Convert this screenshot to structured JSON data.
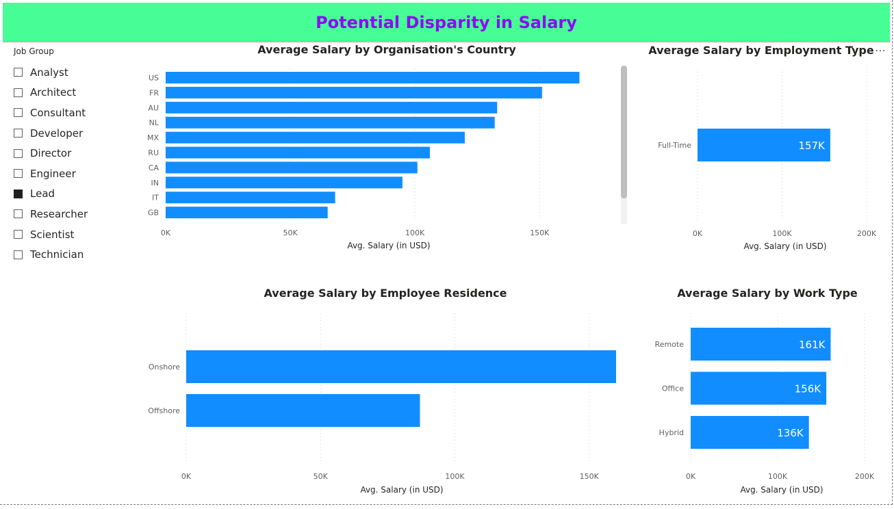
{
  "header": {
    "title": "Potential Disparity in Salary"
  },
  "slicer": {
    "title": "Job Group",
    "items": [
      {
        "label": "Analyst",
        "checked": false
      },
      {
        "label": "Architect",
        "checked": false
      },
      {
        "label": "Consultant",
        "checked": false
      },
      {
        "label": "Developer",
        "checked": false
      },
      {
        "label": "Director",
        "checked": false
      },
      {
        "label": "Engineer",
        "checked": false
      },
      {
        "label": "Lead",
        "checked": true
      },
      {
        "label": "Researcher",
        "checked": false
      },
      {
        "label": "Scientist",
        "checked": false
      },
      {
        "label": "Technician",
        "checked": false
      }
    ]
  },
  "colors": {
    "bar": "#118dff",
    "banner": "#46fe95",
    "title": "#8a0cf4"
  },
  "more_options_icon": "ellipsis-icon",
  "chart_data": [
    {
      "id": "country",
      "type": "bar",
      "orientation": "horizontal",
      "title": "Average Salary by Organisation's Country",
      "xlabel": "Avg. Salary (in USD)",
      "categories": [
        "US",
        "FR",
        "AU",
        "NL",
        "MX",
        "RU",
        "CA",
        "IN",
        "IT",
        "GB"
      ],
      "values": [
        166000,
        151000,
        133000,
        132000,
        120000,
        106000,
        101000,
        95000,
        68000,
        65000
      ],
      "xlim": [
        0,
        184000
      ],
      "xticks": [
        0,
        50000,
        100000,
        150000
      ],
      "xtick_labels": [
        "0K",
        "50K",
        "100K",
        "150K"
      ],
      "grid": true
    },
    {
      "id": "employment",
      "type": "bar",
      "orientation": "horizontal",
      "title": "Average Salary by Employment Type",
      "xlabel": "Avg. Salary (in USD)",
      "categories": [
        "Full-Time"
      ],
      "values": [
        157000
      ],
      "data_labels": [
        "157K"
      ],
      "xlim": [
        0,
        200000
      ],
      "xticks": [
        0,
        100000,
        200000
      ],
      "xtick_labels": [
        "0K",
        "100K",
        "200K"
      ],
      "grid": true
    },
    {
      "id": "residence",
      "type": "bar",
      "orientation": "horizontal",
      "title": "Average Salary by Employee Residence",
      "xlabel": "Avg. Salary (in USD)",
      "categories": [
        "Onshore",
        "Offshore"
      ],
      "values": [
        160000,
        87000
      ],
      "xlim": [
        0,
        160000
      ],
      "xticks": [
        0,
        50000,
        100000,
        150000
      ],
      "xtick_labels": [
        "0K",
        "50K",
        "100K",
        "150K"
      ],
      "grid": true
    },
    {
      "id": "worktype",
      "type": "bar",
      "orientation": "horizontal",
      "title": "Average Salary by Work Type",
      "xlabel": "Avg. Salary (in USD)",
      "categories": [
        "Remote",
        "Office",
        "Hybrid"
      ],
      "values": [
        161000,
        156000,
        136000
      ],
      "data_labels": [
        "161K",
        "156K",
        "136K"
      ],
      "xlim": [
        0,
        200000
      ],
      "xticks": [
        0,
        100000,
        200000
      ],
      "xtick_labels": [
        "0K",
        "100K",
        "200K"
      ],
      "grid": true
    }
  ]
}
